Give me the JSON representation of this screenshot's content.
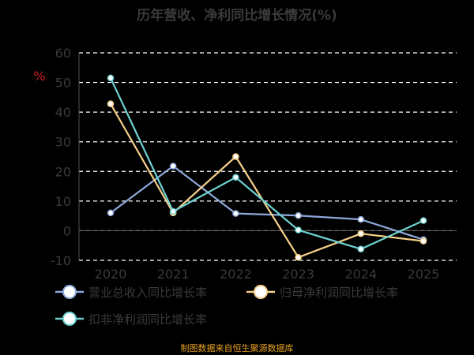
{
  "chart_data": {
    "type": "line",
    "title": "历年营收、净利同比增长情况(%)",
    "y_unit": "%",
    "categories": [
      "2020",
      "2021",
      "2022",
      "2023",
      "2024",
      "2025"
    ],
    "ylim": [
      -10,
      60
    ],
    "yticks": [
      -10,
      0,
      10,
      20,
      30,
      40,
      50,
      60
    ],
    "grid": true,
    "legend_position": "bottom",
    "series": [
      {
        "name": "营业总收入同比增长率",
        "color": "#8fa8dc",
        "values": [
          6.0,
          21.8,
          5.8,
          5.1,
          3.8,
          -3.0
        ]
      },
      {
        "name": "归母净利润同比增长率",
        "color": "#f7d08a",
        "values": [
          42.8,
          6.0,
          25.0,
          -9.0,
          -1.0,
          -3.5
        ]
      },
      {
        "name": "扣非净利润同比增长率",
        "color": "#6fd3d3",
        "values": [
          51.5,
          6.5,
          18.0,
          0.2,
          -6.2,
          3.4
        ]
      }
    ]
  },
  "source_text": "制图数据来自恒生聚源数据库",
  "colors": {
    "background": "#000000",
    "title": "#3a3a3a",
    "ticks": "#3a3a3a",
    "grid": "#ffffff",
    "unit": "#cc2222",
    "source": "#e8a020"
  }
}
